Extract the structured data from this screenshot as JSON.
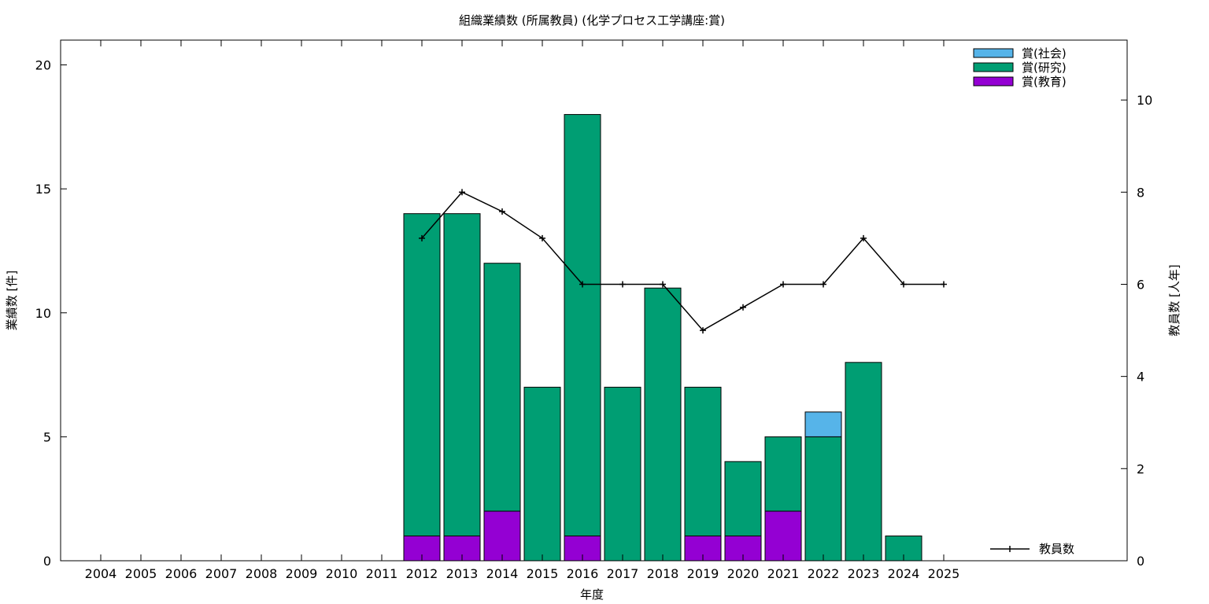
{
  "chart_data": {
    "type": "bar",
    "stacked": true,
    "title": "組織業績数 (所属教員) (化学プロセス工学講座:賞)",
    "xlabel": "年度",
    "ylabel": "業績数 [件]",
    "y2label": "教員数 [人年]",
    "categories": [
      "2004",
      "2005",
      "2006",
      "2007",
      "2008",
      "2009",
      "2010",
      "2011",
      "2012",
      "2013",
      "2014",
      "2015",
      "2016",
      "2017",
      "2018",
      "2019",
      "2020",
      "2021",
      "2022",
      "2023",
      "2024",
      "2025"
    ],
    "ylim": [
      0,
      21
    ],
    "y_ticks": [
      0,
      5,
      10,
      15,
      20
    ],
    "y2lim": [
      0,
      11.3
    ],
    "y2_ticks": [
      0,
      2,
      4,
      6,
      8,
      10
    ],
    "series": [
      {
        "name": "賞(教育)",
        "color": "#9400d3",
        "values": [
          0,
          0,
          0,
          0,
          0,
          0,
          0,
          0,
          1,
          1,
          2,
          0,
          1,
          0,
          0,
          1,
          1,
          2,
          0,
          0,
          0,
          0
        ]
      },
      {
        "name": "賞(研究)",
        "color": "#009e73",
        "values": [
          0,
          0,
          0,
          0,
          0,
          0,
          0,
          0,
          13,
          13,
          10,
          7,
          17,
          7,
          11,
          6,
          3,
          3,
          5,
          8,
          1,
          0
        ]
      },
      {
        "name": "賞(社会)",
        "color": "#56b4e9",
        "values": [
          0,
          0,
          0,
          0,
          0,
          0,
          0,
          0,
          0,
          0,
          0,
          0,
          0,
          0,
          0,
          0,
          0,
          0,
          1,
          0,
          0,
          0
        ]
      }
    ],
    "line_series": {
      "name": "教員数",
      "axis": "y2",
      "color": "#000000",
      "x": [
        "2012",
        "2013",
        "2014",
        "2015",
        "2016",
        "2017",
        "2018",
        "2019",
        "2020",
        "2021",
        "2022",
        "2023",
        "2024",
        "2025"
      ],
      "values": [
        7,
        8,
        7.58,
        7,
        6,
        6,
        6,
        5,
        5.5,
        6,
        6,
        7,
        6,
        6
      ]
    },
    "legend_position": "top-right",
    "grid": false
  }
}
